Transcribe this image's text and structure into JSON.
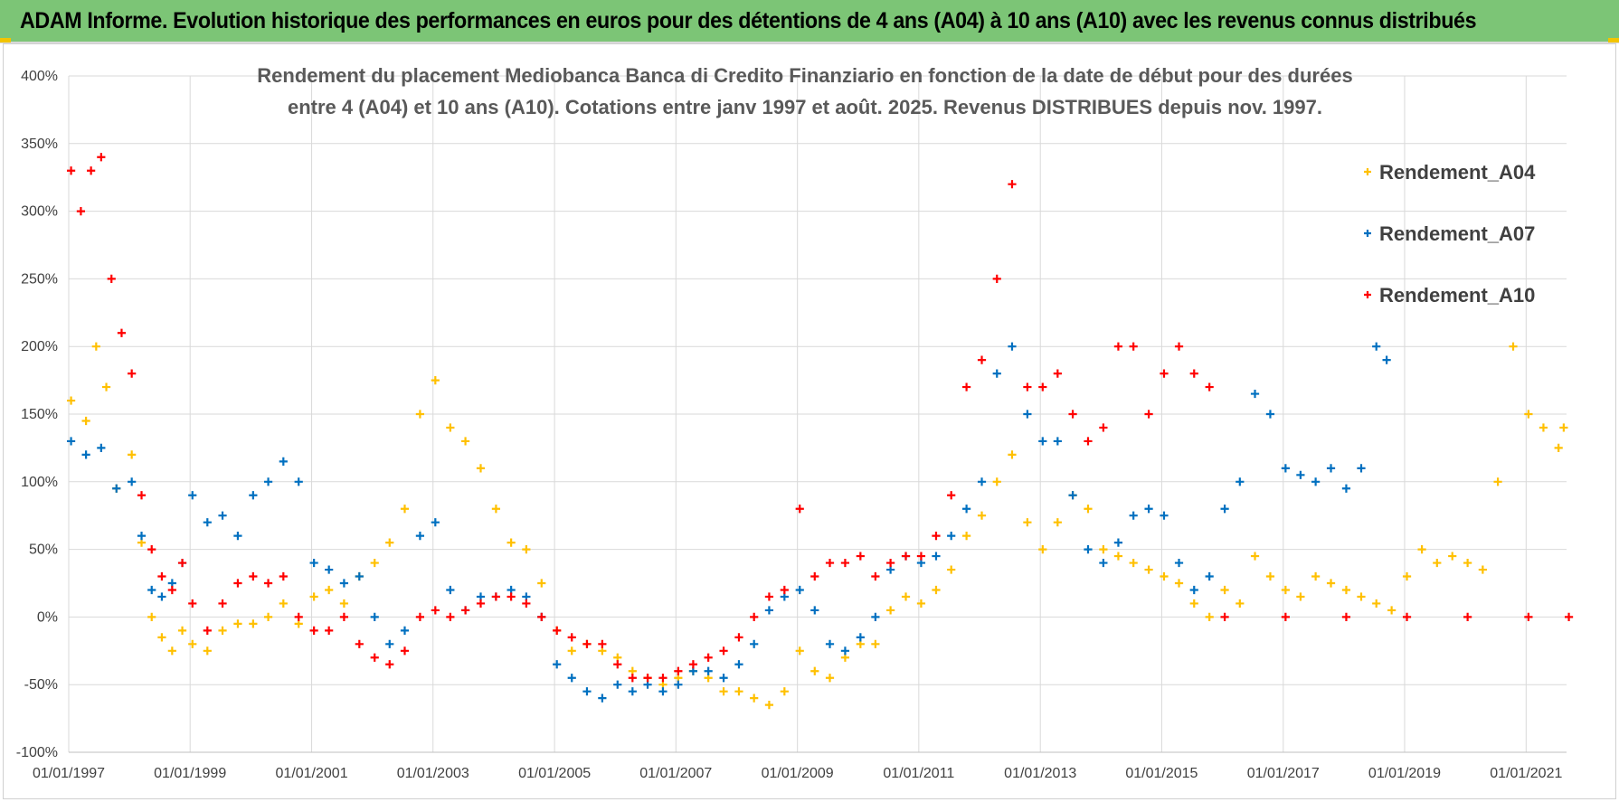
{
  "header": {
    "title": "ADAM Informe. Evolution historique des performances en euros pour des détentions de 4 ans (A04) à 10 ans (A10) avec les revenus connus distribués"
  },
  "colors": {
    "banner": "#7cc576",
    "A04": "#ffc000",
    "A07": "#0070c0",
    "A10": "#ff0000",
    "grid": "#d9d9d9"
  },
  "chart_data": {
    "type": "scatter",
    "title_lines": [
      "Rendement du placement Mediobanca Banca di Credito Finanziario en fonction de la date de début pour des durées",
      "entre 4 (A04) et 10 ans (A10). Cotations entre janv 1997 et août. 2025. Revenus DISTRIBUES depuis nov. 1997."
    ],
    "xlabel": "",
    "ylabel": "",
    "x_range": [
      "1997-01-01",
      "2021-09-01"
    ],
    "y_range": [
      -100,
      400
    ],
    "y_unit": "%",
    "x_ticks": [
      "01/01/1997",
      "01/01/1999",
      "01/01/2001",
      "01/01/2003",
      "01/01/2005",
      "01/01/2007",
      "01/01/2009",
      "01/01/2011",
      "01/01/2013",
      "01/01/2015",
      "01/01/2017",
      "01/01/2019",
      "01/01/2021"
    ],
    "y_ticks": [
      "-100%",
      "-50%",
      "0%",
      "50%",
      "100%",
      "150%",
      "200%",
      "250%",
      "300%",
      "350%",
      "400%"
    ],
    "grid": true,
    "legend_position": "right",
    "marker": "+",
    "series": [
      {
        "name": "Rendement_A04",
        "color": "#ffc000",
        "points": [
          [
            "1997-01",
            160
          ],
          [
            "1997-04",
            145
          ],
          [
            "1997-06",
            200
          ],
          [
            "1997-08",
            170
          ],
          [
            "1997-10",
            95
          ],
          [
            "1998-01",
            120
          ],
          [
            "1998-03",
            55
          ],
          [
            "1998-05",
            0
          ],
          [
            "1998-07",
            -15
          ],
          [
            "1998-09",
            -25
          ],
          [
            "1998-11",
            -10
          ],
          [
            "1999-01",
            -20
          ],
          [
            "1999-04",
            -25
          ],
          [
            "1999-07",
            -10
          ],
          [
            "1999-10",
            -5
          ],
          [
            "2000-01",
            -5
          ],
          [
            "2000-04",
            0
          ],
          [
            "2000-07",
            10
          ],
          [
            "2000-10",
            -5
          ],
          [
            "2001-01",
            15
          ],
          [
            "2001-04",
            20
          ],
          [
            "2001-07",
            10
          ],
          [
            "2001-10",
            30
          ],
          [
            "2002-01",
            40
          ],
          [
            "2002-04",
            55
          ],
          [
            "2002-07",
            80
          ],
          [
            "2002-10",
            150
          ],
          [
            "2003-01",
            175
          ],
          [
            "2003-04",
            140
          ],
          [
            "2003-07",
            130
          ],
          [
            "2003-10",
            110
          ],
          [
            "2004-01",
            80
          ],
          [
            "2004-04",
            55
          ],
          [
            "2004-07",
            50
          ],
          [
            "2004-10",
            25
          ],
          [
            "2005-01",
            -10
          ],
          [
            "2005-04",
            -25
          ],
          [
            "2005-07",
            -20
          ],
          [
            "2005-10",
            -25
          ],
          [
            "2006-01",
            -30
          ],
          [
            "2006-04",
            -40
          ],
          [
            "2006-07",
            -45
          ],
          [
            "2006-10",
            -50
          ],
          [
            "2007-01",
            -45
          ],
          [
            "2007-04",
            -40
          ],
          [
            "2007-07",
            -45
          ],
          [
            "2007-10",
            -55
          ],
          [
            "2008-01",
            -55
          ],
          [
            "2008-04",
            -60
          ],
          [
            "2008-07",
            -65
          ],
          [
            "2008-10",
            -55
          ],
          [
            "2009-01",
            -25
          ],
          [
            "2009-04",
            -40
          ],
          [
            "2009-07",
            -45
          ],
          [
            "2009-10",
            -30
          ],
          [
            "2010-01",
            -20
          ],
          [
            "2010-04",
            -20
          ],
          [
            "2010-07",
            5
          ],
          [
            "2010-10",
            15
          ],
          [
            "2011-01",
            10
          ],
          [
            "2011-04",
            20
          ],
          [
            "2011-07",
            35
          ],
          [
            "2011-10",
            60
          ],
          [
            "2012-01",
            75
          ],
          [
            "2012-04",
            100
          ],
          [
            "2012-07",
            120
          ],
          [
            "2012-10",
            70
          ],
          [
            "2013-01",
            50
          ],
          [
            "2013-04",
            70
          ],
          [
            "2013-07",
            90
          ],
          [
            "2013-10",
            80
          ],
          [
            "2014-01",
            50
          ],
          [
            "2014-04",
            45
          ],
          [
            "2014-07",
            40
          ],
          [
            "2014-10",
            35
          ],
          [
            "2015-01",
            30
          ],
          [
            "2015-04",
            25
          ],
          [
            "2015-07",
            10
          ],
          [
            "2015-10",
            0
          ],
          [
            "2016-01",
            20
          ],
          [
            "2016-04",
            10
          ],
          [
            "2016-07",
            45
          ],
          [
            "2016-10",
            30
          ],
          [
            "2017-01",
            20
          ],
          [
            "2017-04",
            15
          ],
          [
            "2017-07",
            30
          ],
          [
            "2017-10",
            25
          ],
          [
            "2018-01",
            20
          ],
          [
            "2018-04",
            15
          ],
          [
            "2018-07",
            10
          ],
          [
            "2018-10",
            5
          ],
          [
            "2019-01",
            30
          ],
          [
            "2019-04",
            50
          ],
          [
            "2019-07",
            40
          ],
          [
            "2019-10",
            45
          ],
          [
            "2020-01",
            40
          ],
          [
            "2020-04",
            35
          ],
          [
            "2020-07",
            100
          ],
          [
            "2020-10",
            200
          ],
          [
            "2021-01",
            150
          ],
          [
            "2021-04",
            140
          ],
          [
            "2021-07",
            125
          ],
          [
            "2021-08",
            140
          ]
        ]
      },
      {
        "name": "Rendement_A07",
        "color": "#0070c0",
        "points": [
          [
            "1997-01",
            130
          ],
          [
            "1997-04",
            120
          ],
          [
            "1997-07",
            125
          ],
          [
            "1997-10",
            95
          ],
          [
            "1998-01",
            100
          ],
          [
            "1998-03",
            60
          ],
          [
            "1998-05",
            20
          ],
          [
            "1998-07",
            15
          ],
          [
            "1998-09",
            25
          ],
          [
            "1998-11",
            40
          ],
          [
            "1999-01",
            90
          ],
          [
            "1999-04",
            70
          ],
          [
            "1999-07",
            75
          ],
          [
            "1999-10",
            60
          ],
          [
            "2000-01",
            90
          ],
          [
            "2000-04",
            100
          ],
          [
            "2000-07",
            115
          ],
          [
            "2000-10",
            100
          ],
          [
            "2001-01",
            40
          ],
          [
            "2001-04",
            35
          ],
          [
            "2001-07",
            25
          ],
          [
            "2001-10",
            30
          ],
          [
            "2002-01",
            0
          ],
          [
            "2002-04",
            -20
          ],
          [
            "2002-07",
            -10
          ],
          [
            "2002-10",
            60
          ],
          [
            "2003-01",
            70
          ],
          [
            "2003-04",
            20
          ],
          [
            "2003-07",
            5
          ],
          [
            "2003-10",
            15
          ],
          [
            "2004-01",
            15
          ],
          [
            "2004-04",
            20
          ],
          [
            "2004-07",
            15
          ],
          [
            "2004-10",
            0
          ],
          [
            "2005-01",
            -35
          ],
          [
            "2005-04",
            -45
          ],
          [
            "2005-07",
            -55
          ],
          [
            "2005-10",
            -60
          ],
          [
            "2006-01",
            -50
          ],
          [
            "2006-04",
            -55
          ],
          [
            "2006-07",
            -50
          ],
          [
            "2006-10",
            -55
          ],
          [
            "2007-01",
            -50
          ],
          [
            "2007-04",
            -40
          ],
          [
            "2007-07",
            -40
          ],
          [
            "2007-10",
            -45
          ],
          [
            "2008-01",
            -35
          ],
          [
            "2008-04",
            -20
          ],
          [
            "2008-07",
            5
          ],
          [
            "2008-10",
            15
          ],
          [
            "2009-01",
            20
          ],
          [
            "2009-04",
            5
          ],
          [
            "2009-07",
            -20
          ],
          [
            "2009-10",
            -25
          ],
          [
            "2010-01",
            -15
          ],
          [
            "2010-04",
            0
          ],
          [
            "2010-07",
            35
          ],
          [
            "2010-10",
            45
          ],
          [
            "2011-01",
            40
          ],
          [
            "2011-04",
            45
          ],
          [
            "2011-07",
            60
          ],
          [
            "2011-10",
            80
          ],
          [
            "2012-01",
            100
          ],
          [
            "2012-04",
            180
          ],
          [
            "2012-07",
            200
          ],
          [
            "2012-10",
            150
          ],
          [
            "2013-01",
            130
          ],
          [
            "2013-04",
            130
          ],
          [
            "2013-07",
            90
          ],
          [
            "2013-10",
            50
          ],
          [
            "2014-01",
            40
          ],
          [
            "2014-04",
            55
          ],
          [
            "2014-07",
            75
          ],
          [
            "2014-10",
            80
          ],
          [
            "2015-01",
            75
          ],
          [
            "2015-04",
            40
          ],
          [
            "2015-07",
            20
          ],
          [
            "2015-10",
            30
          ],
          [
            "2016-01",
            80
          ],
          [
            "2016-04",
            100
          ],
          [
            "2016-07",
            165
          ],
          [
            "2016-10",
            150
          ],
          [
            "2017-01",
            110
          ],
          [
            "2017-04",
            105
          ],
          [
            "2017-07",
            100
          ],
          [
            "2017-10",
            110
          ],
          [
            "2018-01",
            95
          ],
          [
            "2018-04",
            110
          ],
          [
            "2018-07",
            200
          ],
          [
            "2018-09",
            190
          ]
        ]
      },
      {
        "name": "Rendement_A10",
        "color": "#ff0000",
        "points": [
          [
            "1997-01",
            330
          ],
          [
            "1997-03",
            300
          ],
          [
            "1997-05",
            330
          ],
          [
            "1997-07",
            340
          ],
          [
            "1997-09",
            250
          ],
          [
            "1997-11",
            210
          ],
          [
            "1998-01",
            180
          ],
          [
            "1998-03",
            90
          ],
          [
            "1998-05",
            50
          ],
          [
            "1998-07",
            30
          ],
          [
            "1998-09",
            20
          ],
          [
            "1998-11",
            40
          ],
          [
            "1999-01",
            10
          ],
          [
            "1999-04",
            -10
          ],
          [
            "1999-07",
            10
          ],
          [
            "1999-10",
            25
          ],
          [
            "2000-01",
            30
          ],
          [
            "2000-04",
            25
          ],
          [
            "2000-07",
            30
          ],
          [
            "2000-10",
            0
          ],
          [
            "2001-01",
            -10
          ],
          [
            "2001-04",
            -10
          ],
          [
            "2001-07",
            0
          ],
          [
            "2001-10",
            -20
          ],
          [
            "2002-01",
            -30
          ],
          [
            "2002-04",
            -35
          ],
          [
            "2002-07",
            -25
          ],
          [
            "2002-10",
            0
          ],
          [
            "2003-01",
            5
          ],
          [
            "2003-04",
            0
          ],
          [
            "2003-07",
            5
          ],
          [
            "2003-10",
            10
          ],
          [
            "2004-01",
            15
          ],
          [
            "2004-04",
            15
          ],
          [
            "2004-07",
            10
          ],
          [
            "2004-10",
            0
          ],
          [
            "2005-01",
            -10
          ],
          [
            "2005-04",
            -15
          ],
          [
            "2005-07",
            -20
          ],
          [
            "2005-10",
            -20
          ],
          [
            "2006-01",
            -35
          ],
          [
            "2006-04",
            -45
          ],
          [
            "2006-07",
            -45
          ],
          [
            "2006-10",
            -45
          ],
          [
            "2007-01",
            -40
          ],
          [
            "2007-04",
            -35
          ],
          [
            "2007-07",
            -30
          ],
          [
            "2007-10",
            -25
          ],
          [
            "2008-01",
            -15
          ],
          [
            "2008-04",
            0
          ],
          [
            "2008-07",
            15
          ],
          [
            "2008-10",
            20
          ],
          [
            "2009-01",
            80
          ],
          [
            "2009-04",
            30
          ],
          [
            "2009-07",
            40
          ],
          [
            "2009-10",
            40
          ],
          [
            "2010-01",
            45
          ],
          [
            "2010-04",
            30
          ],
          [
            "2010-07",
            40
          ],
          [
            "2010-10",
            45
          ],
          [
            "2011-01",
            45
          ],
          [
            "2011-04",
            60
          ],
          [
            "2011-07",
            90
          ],
          [
            "2011-10",
            170
          ],
          [
            "2012-01",
            190
          ],
          [
            "2012-04",
            250
          ],
          [
            "2012-07",
            320
          ],
          [
            "2012-10",
            170
          ],
          [
            "2013-01",
            170
          ],
          [
            "2013-04",
            180
          ],
          [
            "2013-07",
            150
          ],
          [
            "2013-10",
            130
          ],
          [
            "2014-01",
            140
          ],
          [
            "2014-04",
            200
          ],
          [
            "2014-07",
            200
          ],
          [
            "2014-10",
            150
          ],
          [
            "2015-01",
            180
          ],
          [
            "2015-04",
            200
          ],
          [
            "2015-07",
            180
          ],
          [
            "2015-10",
            170
          ],
          [
            "2016-01",
            0
          ],
          [
            "2017-01",
            0
          ],
          [
            "2018-01",
            0
          ],
          [
            "2019-01",
            0
          ],
          [
            "2020-01",
            0
          ],
          [
            "2021-01",
            0
          ],
          [
            "2021-09",
            0
          ]
        ]
      }
    ]
  }
}
